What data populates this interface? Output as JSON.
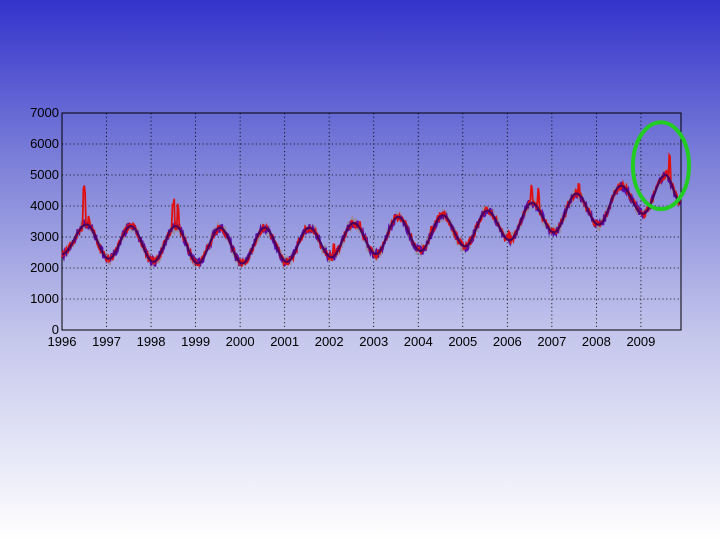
{
  "colors": {
    "series_red": "#e01010",
    "series_gray": "#9a8a9a",
    "series_purple": "#5a0aa8",
    "fit": "#4a0060",
    "highlight_ellipse": "#22cc22",
    "plot_background": "transparent"
  },
  "chart_data": {
    "type": "line",
    "title": "",
    "xlabel": "",
    "ylabel": "",
    "xlim": [
      1996,
      2009.9
    ],
    "ylim": [
      0,
      7000
    ],
    "grid": true,
    "x_ticks": [
      1996,
      1997,
      1998,
      1999,
      2000,
      2001,
      2002,
      2003,
      2004,
      2005,
      2006,
      2007,
      2008,
      2009
    ],
    "x_tick_labels": [
      "1996",
      "1997",
      "1998",
      "1999",
      "2000",
      "2001",
      "2002",
      "2003",
      "2004",
      "2005",
      "2006",
      "2007",
      "2008",
      "2009"
    ],
    "y_ticks": [
      0,
      1000,
      2000,
      3000,
      4000,
      5000,
      6000,
      7000
    ],
    "y_tick_labels": [
      "0",
      "1000",
      "2000",
      "3000",
      "4000",
      "5000",
      "6000",
      "7000"
    ],
    "seasonal_peaks": [
      {
        "x": 1996.55,
        "y": 3400
      },
      {
        "x": 1997.55,
        "y": 3350
      },
      {
        "x": 1998.55,
        "y": 3350
      },
      {
        "x": 1999.55,
        "y": 3300
      },
      {
        "x": 2000.55,
        "y": 3300
      },
      {
        "x": 2001.55,
        "y": 3300
      },
      {
        "x": 2002.55,
        "y": 3450
      },
      {
        "x": 2003.55,
        "y": 3650
      },
      {
        "x": 2004.55,
        "y": 3700
      },
      {
        "x": 2005.55,
        "y": 3850
      },
      {
        "x": 2006.55,
        "y": 4100
      },
      {
        "x": 2007.55,
        "y": 4400
      },
      {
        "x": 2008.55,
        "y": 4650
      },
      {
        "x": 2009.55,
        "y": 5000
      }
    ],
    "seasonal_troughs": [
      {
        "x": 1996.0,
        "y": 2450
      },
      {
        "x": 1997.05,
        "y": 2300
      },
      {
        "x": 1998.05,
        "y": 2200
      },
      {
        "x": 1999.05,
        "y": 2150
      },
      {
        "x": 2000.05,
        "y": 2150
      },
      {
        "x": 2001.05,
        "y": 2200
      },
      {
        "x": 2002.05,
        "y": 2350
      },
      {
        "x": 2003.05,
        "y": 2450
      },
      {
        "x": 2004.05,
        "y": 2550
      },
      {
        "x": 2005.05,
        "y": 2700
      },
      {
        "x": 2006.05,
        "y": 2900
      },
      {
        "x": 2007.05,
        "y": 3150
      },
      {
        "x": 2008.05,
        "y": 3400
      },
      {
        "x": 2009.05,
        "y": 3750
      },
      {
        "x": 2009.9,
        "y": 4100
      }
    ],
    "spikes": [
      {
        "x": 1996.5,
        "y": 4550
      },
      {
        "x": 1996.6,
        "y": 3600
      },
      {
        "x": 1998.5,
        "y": 4100
      },
      {
        "x": 1998.6,
        "y": 4000
      },
      {
        "x": 2002.1,
        "y": 2800
      },
      {
        "x": 2002.7,
        "y": 3400
      },
      {
        "x": 2004.3,
        "y": 3400
      },
      {
        "x": 2006.05,
        "y": 3250
      },
      {
        "x": 2006.55,
        "y": 4600
      },
      {
        "x": 2006.7,
        "y": 4500
      },
      {
        "x": 2007.6,
        "y": 4650
      },
      {
        "x": 2009.65,
        "y": 5650
      },
      {
        "x": 2009.58,
        "y": 5200
      }
    ],
    "annotation": {
      "type": "ellipse",
      "label": "",
      "x": [
        2009.0,
        2009.9
      ],
      "y": [
        3900,
        6700
      ]
    }
  }
}
